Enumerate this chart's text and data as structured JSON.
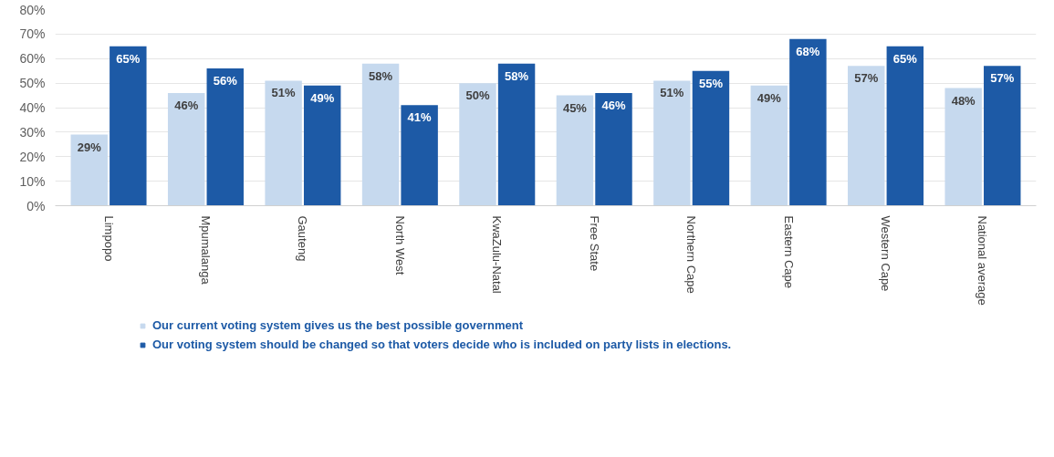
{
  "chart_data": {
    "type": "bar",
    "categories": [
      "Limpopo",
      "Mpumalanga",
      "Gauteng",
      "North West",
      "KwaZulu-Natal",
      "Free State",
      "Northern Cape",
      "Eastern Cape",
      "Western Cape",
      "National average"
    ],
    "series": [
      {
        "name": "Our current voting system gives us the best possible government",
        "color": "#c6d9ee",
        "values": [
          29,
          46,
          51,
          58,
          50,
          45,
          51,
          49,
          57,
          48
        ],
        "value_labels": [
          "29%",
          "46%",
          "51%",
          "58%",
          "50%",
          "45%",
          "51%",
          "49%",
          "57%",
          "48%"
        ]
      },
      {
        "name": "Our voting system should be changed so that voters decide who is included on party lists in elections.",
        "color": "#1d5aa6",
        "values": [
          65,
          56,
          49,
          41,
          58,
          46,
          55,
          68,
          65,
          57
        ],
        "value_labels": [
          "65%",
          "56%",
          "49%",
          "41%",
          "58%",
          "46%",
          "55%",
          "68%",
          "65%",
          "57%"
        ]
      }
    ],
    "ylim": [
      0,
      80
    ],
    "yticks": [
      {
        "value": 0,
        "label": "0%"
      },
      {
        "value": 10,
        "label": "10%"
      },
      {
        "value": 20,
        "label": "20%"
      },
      {
        "value": 30,
        "label": "30%"
      },
      {
        "value": 40,
        "label": "40%"
      },
      {
        "value": 50,
        "label": "50%"
      },
      {
        "value": 60,
        "label": "60%"
      },
      {
        "value": 70,
        "label": "70%"
      },
      {
        "value": 80,
        "label": "80%"
      }
    ],
    "grid": "y",
    "legend": "bottom left"
  }
}
